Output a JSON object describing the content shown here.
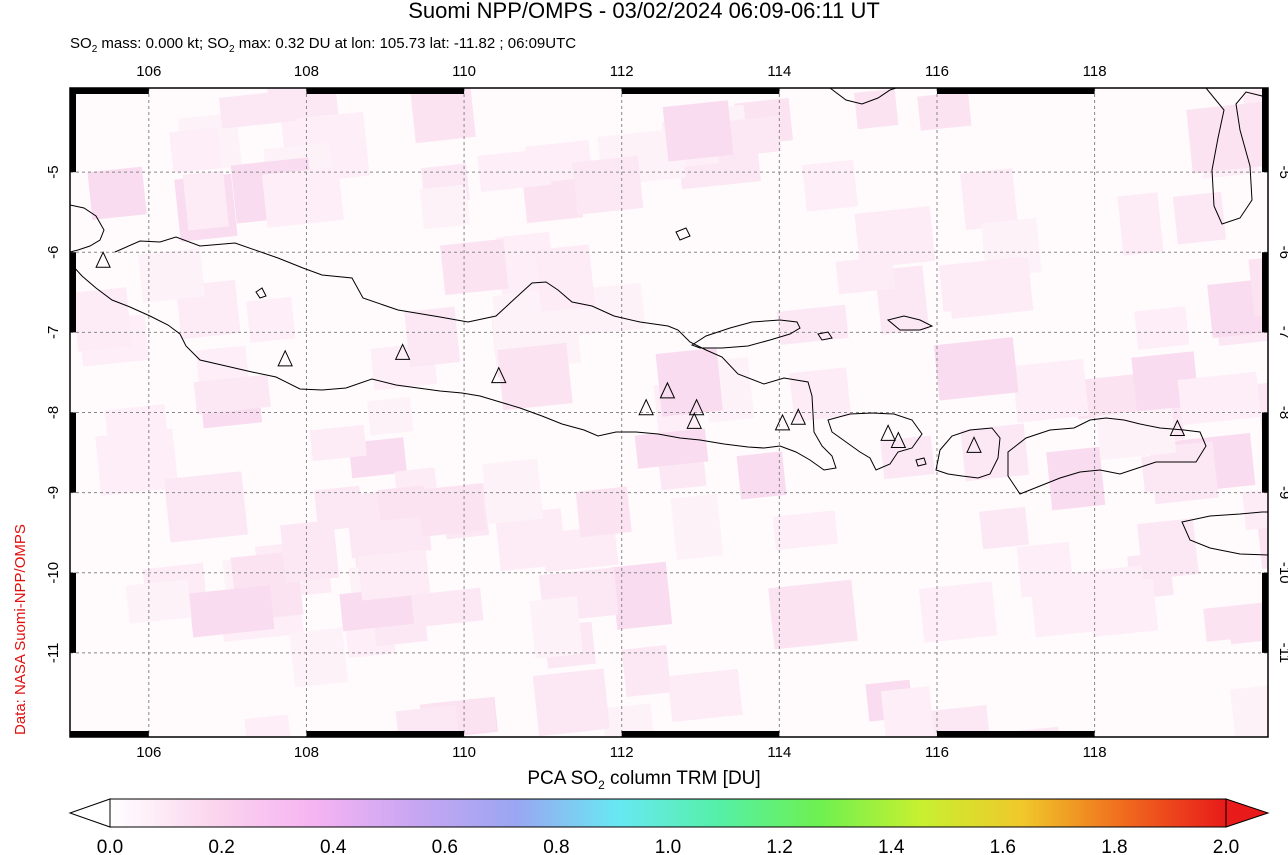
{
  "header": {
    "title": "Suomi NPP/OMPS - 03/02/2024 06:09-06:11 UT",
    "stats_pre": "SO",
    "stats_sub": "2",
    "stats_mid": " mass: 0.000 kt; SO",
    "stats_sub2": "2",
    "stats_post": " max: 0.32 DU at lon: 105.73 lat: -11.82 ; 06:09UTC"
  },
  "credit": "Data: NASA Suomi-NPP/OMPS",
  "map": {
    "lon_range": [
      105,
      120.2
    ],
    "lat_range": [
      -12.05,
      -3.95
    ],
    "lon_ticks": [
      "106",
      "108",
      "110",
      "112",
      "114",
      "116",
      "118"
    ],
    "lat_ticks": [
      "-5",
      "-6",
      "-7",
      "-8",
      "-9",
      "-10",
      "-11"
    ],
    "grid": true,
    "volcanoes": [
      [
        105.42,
        -6.1
      ],
      [
        107.73,
        -7.33
      ],
      [
        109.22,
        -7.25
      ],
      [
        110.44,
        -7.54
      ],
      [
        112.31,
        -7.94
      ],
      [
        112.58,
        -7.73
      ],
      [
        112.95,
        -7.94
      ],
      [
        112.92,
        -8.11
      ],
      [
        114.04,
        -8.13
      ],
      [
        114.24,
        -8.06
      ],
      [
        115.38,
        -8.26
      ],
      [
        115.51,
        -8.35
      ],
      [
        116.47,
        -8.41
      ],
      [
        119.05,
        -8.2
      ]
    ],
    "so2_max_location": [
      105.73,
      -11.82
    ]
  },
  "colorbar": {
    "title_pre": "PCA SO",
    "title_sub": "2",
    "title_post": " column TRM [DU]",
    "ticks": [
      "0.0",
      "0.2",
      "0.4",
      "0.6",
      "0.8",
      "1.0",
      "1.2",
      "1.4",
      "1.6",
      "1.8",
      "2.0"
    ],
    "range": [
      0.0,
      2.0
    ],
    "colors": [
      "#ffffff",
      "#fbd6ee",
      "#f6b4f2",
      "#c8a6f2",
      "#9aa6f2",
      "#68e8f2",
      "#55f0a8",
      "#6ef050",
      "#c8f030",
      "#f0c82a",
      "#f06a1e",
      "#e81a1a"
    ]
  }
}
